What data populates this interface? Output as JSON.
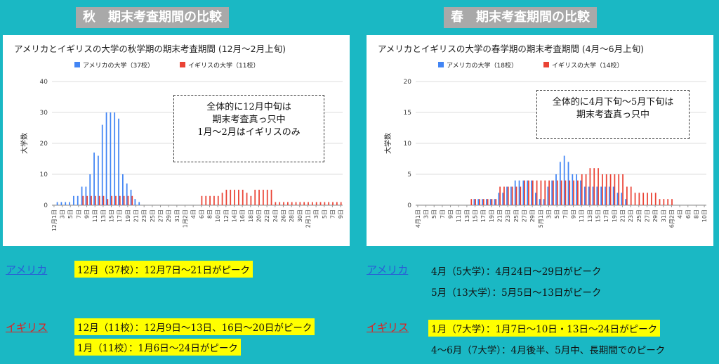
{
  "left_panel": {
    "title": "秋　期末考査期間の比較"
  },
  "right_panel": {
    "title": "春　期末考査期間の比較"
  },
  "chart_data": [
    {
      "type": "bar",
      "title": "アメリカとイギリスの大学の秋学期の期末考査期間 (12月〜2月上旬)",
      "ylabel": "大学数",
      "ylim": [
        0,
        40
      ],
      "yticks": [
        0,
        10,
        20,
        30,
        40
      ],
      "grid": true,
      "legend_position": "top-left",
      "categories": [
        "12月1日",
        "2日",
        "3日",
        "4日",
        "5日",
        "6日",
        "7日",
        "8日",
        "9日",
        "10日",
        "11日",
        "12日",
        "13日",
        "14日",
        "15日",
        "16日",
        "17日",
        "18日",
        "19日",
        "20日",
        "21日",
        "22日",
        "23日",
        "24日",
        "25日",
        "26日",
        "27日",
        "28日",
        "29日",
        "30日",
        "31日",
        "1月1日",
        "2日",
        "3日",
        "4日",
        "5日",
        "6日",
        "7日",
        "8日",
        "9日",
        "10日",
        "11日",
        "12日",
        "13日",
        "14日",
        "15日",
        "16日",
        "17日",
        "18日",
        "19日",
        "20日",
        "21日",
        "22日",
        "23日",
        "24日",
        "25日",
        "26日",
        "27日",
        "28日",
        "29日",
        "30日",
        "31日",
        "2月1日",
        "2日",
        "3日",
        "4日",
        "5日",
        "6日",
        "7日",
        "8日",
        "9日"
      ],
      "tick_labels": [
        "12月1日",
        "3日",
        "5日",
        "7日",
        "9日",
        "11日",
        "13日",
        "15日",
        "17日",
        "19日",
        "21日",
        "23日",
        "25日",
        "27日",
        "29日",
        "31日",
        "1月2日",
        "4日",
        "6日",
        "8日",
        "10日",
        "12日",
        "14日",
        "16日",
        "18日",
        "20日",
        "22日",
        "24日",
        "26日",
        "28日",
        "30日",
        "2月1日",
        "3日",
        "5日",
        "7日",
        "9日"
      ],
      "series": [
        {
          "name": "アメリカの大学（37校）",
          "color": "#4285f4",
          "values": [
            0,
            1,
            1,
            1,
            1,
            3,
            3,
            6,
            6,
            10,
            17,
            16,
            26,
            30,
            30,
            30,
            28,
            10,
            7,
            5,
            2,
            1,
            0,
            0,
            0,
            0,
            0,
            0,
            0,
            0,
            0,
            0,
            0,
            0,
            0,
            0,
            0,
            0,
            0,
            0,
            0,
            0,
            0,
            0,
            0,
            0,
            0,
            0,
            0,
            0,
            0,
            0,
            0,
            0,
            0,
            0,
            0,
            0,
            0,
            0,
            0,
            0,
            0,
            0,
            0,
            0,
            0,
            0,
            0,
            0,
            0
          ]
        },
        {
          "name": "イギリスの大学（11校）",
          "color": "#ea4335",
          "values": [
            0,
            0,
            0,
            0,
            0,
            0,
            0,
            3,
            3,
            3,
            3,
            3,
            3,
            2,
            3,
            3,
            3,
            3,
            3,
            3,
            0,
            0,
            0,
            0,
            0,
            0,
            0,
            0,
            0,
            0,
            0,
            0,
            0,
            0,
            0,
            0,
            3,
            3,
            3,
            3,
            3,
            4,
            5,
            5,
            5,
            5,
            5,
            4,
            3,
            5,
            5,
            5,
            5,
            5,
            1,
            1,
            1,
            1,
            1,
            1,
            1,
            1,
            1,
            1,
            1,
            1,
            1,
            1,
            1,
            1,
            1
          ]
        }
      ]
    },
    {
      "type": "bar",
      "title": "アメリカとイギリスの大学の春学期の期末考査期間 (4月〜6月上旬)",
      "ylabel": "大学数",
      "ylim": [
        0,
        20
      ],
      "yticks": [
        0,
        5,
        10,
        15,
        20
      ],
      "grid": true,
      "legend_position": "top-left",
      "categories": [
        "4月1日",
        "2日",
        "3日",
        "4日",
        "5日",
        "6日",
        "7日",
        "8日",
        "9日",
        "10日",
        "11日",
        "12日",
        "13日",
        "14日",
        "15日",
        "16日",
        "17日",
        "18日",
        "19日",
        "20日",
        "21日",
        "22日",
        "23日",
        "24日",
        "25日",
        "26日",
        "27日",
        "28日",
        "29日",
        "30日",
        "5月1日",
        "2日",
        "3日",
        "4日",
        "5日",
        "6日",
        "7日",
        "8日",
        "9日",
        "10日",
        "11日",
        "12日",
        "13日",
        "14日",
        "15日",
        "16日",
        "17日",
        "18日",
        "19日",
        "20日",
        "21日",
        "22日",
        "23日",
        "24日",
        "25日",
        "26日",
        "27日",
        "28日",
        "29日",
        "30日",
        "31日",
        "6月1日",
        "2日",
        "3日",
        "4日",
        "5日",
        "6日",
        "7日",
        "8日",
        "9日",
        "10日"
      ],
      "tick_labels": [
        "4月1日",
        "3日",
        "5日",
        "7日",
        "9日",
        "11日",
        "13日",
        "15日",
        "17日",
        "19日",
        "21日",
        "23日",
        "25日",
        "27日",
        "29日",
        "5月1日",
        "3日",
        "5日",
        "7日",
        "9日",
        "11日",
        "13日",
        "15日",
        "17日",
        "19日",
        "21日",
        "23日",
        "25日",
        "27日",
        "29日",
        "31日",
        "6月2日",
        "4日",
        "6日",
        "8日",
        "10日"
      ],
      "series": [
        {
          "name": "アメリカの大学（18校）",
          "color": "#4285f4",
          "values": [
            0,
            0,
            0,
            0,
            0,
            0,
            0,
            0,
            0,
            0,
            0,
            0,
            0,
            0,
            1,
            1,
            1,
            1,
            1,
            1,
            2,
            2,
            3,
            3,
            4,
            4,
            4,
            4,
            4,
            2,
            1,
            1,
            3,
            4,
            5,
            7,
            8,
            7,
            5,
            5,
            4,
            3,
            3,
            3,
            3,
            3,
            3,
            3,
            3,
            2,
            2,
            1,
            0,
            0,
            0,
            0,
            0,
            0,
            0,
            0,
            0,
            0,
            0,
            0,
            0,
            0,
            0,
            0,
            0,
            0,
            0
          ]
        },
        {
          "name": "イギリスの大学（14校）",
          "color": "#ea4335",
          "values": [
            0,
            0,
            0,
            0,
            0,
            0,
            0,
            0,
            0,
            0,
            0,
            0,
            0,
            1,
            1,
            1,
            1,
            1,
            1,
            1,
            3,
            3,
            3,
            3,
            3,
            3,
            4,
            4,
            4,
            4,
            4,
            4,
            4,
            4,
            4,
            4,
            4,
            4,
            4,
            4,
            5,
            5,
            6,
            6,
            6,
            5,
            5,
            5,
            5,
            5,
            5,
            3,
            3,
            2,
            2,
            2,
            2,
            2,
            2,
            1,
            1,
            1,
            1,
            0,
            0,
            0,
            0,
            0,
            0,
            0,
            0
          ]
        }
      ]
    }
  ],
  "notes": {
    "left": [
      "全体的に12月中旬は",
      "期末考査真っ只中",
      "1月〜2月はイギリスのみ"
    ],
    "right": [
      "全体的に4月下旬〜5月下旬は",
      "期末考査真っ只中"
    ]
  },
  "summary": {
    "left": {
      "us_label": "アメリカ",
      "us_lines": [
        "12月（37校）：12月7日〜21日がピーク"
      ],
      "uk_label": "イギリス",
      "uk_lines": [
        "12月（11校）：12月9日〜13日、16日〜20日がピーク",
        "1月（11校）：1月6日〜24日がピーク"
      ]
    },
    "right": {
      "us_label": "アメリカ",
      "us_lines": [
        "4月（5大学）：4月24日〜29日がピーク",
        "5月（13大学）：5月5日〜13日がピーク"
      ],
      "uk_label": "イギリス",
      "uk_lines": [
        "1月（7大学）：1月7日〜10日・13日〜24日がピーク",
        "4〜6月（7大学）：4月後半、5月中、長期間でのピーク"
      ]
    }
  }
}
